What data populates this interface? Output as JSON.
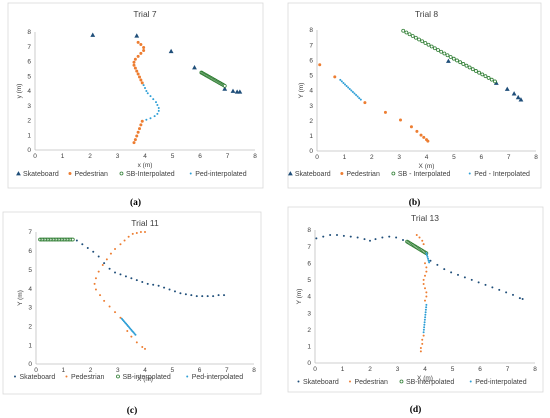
{
  "colors": {
    "skateboard": "#1f4e79",
    "pedestrian": "#ed7d31",
    "sb_interp": "#2e7d32",
    "ped_interp": "#2e9fd6"
  },
  "chart_data": [
    {
      "type": "scatter",
      "caption": "(a)",
      "title": "Trial 7",
      "xlabel": "x (m)",
      "ylabel": "y (m)",
      "xlim": [
        0,
        8
      ],
      "ylim": [
        0,
        8
      ],
      "xticks": [
        0,
        1,
        2,
        3,
        4,
        5,
        6,
        7,
        8
      ],
      "yticks": [
        0,
        1,
        2,
        3,
        4,
        5,
        6,
        7,
        8
      ],
      "legend": [
        "Skateboard",
        "Pedestrian",
        "SB-Interpolated",
        "Ped-interpolated"
      ],
      "series": [
        {
          "name": "Skateboard",
          "marker": "triangle",
          "color": "skateboard",
          "x": [
            2.1,
            3.7,
            4.95,
            5.8,
            6.9,
            7.2,
            7.35,
            7.45
          ],
          "y": [
            7.8,
            7.75,
            6.7,
            5.6,
            4.15,
            4.0,
            3.95,
            3.95
          ]
        },
        {
          "name": "Pedestrian",
          "marker": "circle",
          "color": "pedestrian",
          "points": [
            [
              3.75,
              7.3
            ],
            [
              3.85,
              7.15
            ],
            [
              3.95,
              6.95
            ],
            [
              3.95,
              6.75
            ],
            [
              3.85,
              6.55
            ],
            [
              3.75,
              6.35
            ],
            [
              3.65,
              6.15
            ],
            [
              3.6,
              5.95
            ],
            [
              3.6,
              5.75
            ],
            [
              3.65,
              5.55
            ],
            [
              3.7,
              5.35
            ],
            [
              3.75,
              5.15
            ],
            [
              3.8,
              4.95
            ],
            [
              3.85,
              4.75
            ],
            [
              3.9,
              4.55
            ],
            [
              3.9,
              1.95
            ],
            [
              3.85,
              1.7
            ],
            [
              3.8,
              1.45
            ],
            [
              3.75,
              1.2
            ],
            [
              3.7,
              0.95
            ],
            [
              3.65,
              0.7
            ],
            [
              3.6,
              0.5
            ]
          ]
        },
        {
          "name": "SB-Interpolated",
          "marker": "hollow",
          "color": "sb_interp",
          "from": [
            6.05,
            5.25
          ],
          "to": [
            6.9,
            4.35
          ],
          "count": 24
        },
        {
          "name": "Ped-interpolated",
          "marker": "dot",
          "color": "ped_interp",
          "points": [
            [
              3.95,
              4.4
            ],
            [
              4.0,
              4.2
            ],
            [
              4.05,
              4.0
            ],
            [
              4.1,
              3.85
            ],
            [
              4.2,
              3.65
            ],
            [
              4.3,
              3.45
            ],
            [
              4.4,
              3.25
            ],
            [
              4.45,
              3.05
            ],
            [
              4.5,
              2.85
            ],
            [
              4.5,
              2.65
            ],
            [
              4.45,
              2.45
            ],
            [
              4.35,
              2.3
            ],
            [
              4.2,
              2.15
            ],
            [
              4.05,
              2.05
            ]
          ]
        }
      ]
    },
    {
      "type": "scatter",
      "caption": "(b)",
      "title": "Trial 8",
      "xlabel": "X (m)",
      "ylabel": "Y (m)",
      "xlim": [
        0,
        8
      ],
      "ylim": [
        0,
        8
      ],
      "xticks": [
        0,
        1,
        2,
        3,
        4,
        5,
        6,
        7,
        8
      ],
      "yticks": [
        0,
        1,
        2,
        3,
        4,
        5,
        6,
        7,
        8
      ],
      "legend": [
        "Skateboard",
        "Pedestrian",
        "SB - Interpolated",
        "Ped - Interpolated"
      ],
      "series": [
        {
          "name": "Skateboard",
          "marker": "triangle",
          "color": "skateboard",
          "x": [
            4.8,
            6.55,
            6.95,
            7.2,
            7.35,
            7.45
          ],
          "y": [
            5.95,
            4.5,
            4.1,
            3.8,
            3.55,
            3.4
          ]
        },
        {
          "name": "Pedestrian",
          "marker": "circle",
          "color": "pedestrian",
          "x": [
            0.1,
            0.65,
            1.75,
            2.5,
            3.05,
            3.45,
            3.65,
            3.8,
            3.9,
            4.0,
            4.05
          ],
          "y": [
            5.7,
            4.9,
            3.2,
            2.55,
            2.05,
            1.6,
            1.3,
            1.05,
            0.9,
            0.75,
            0.65
          ]
        },
        {
          "name": "SB - Interpolated",
          "marker": "hollow",
          "color": "sb_interp",
          "from": [
            3.15,
            7.95
          ],
          "to": [
            6.5,
            4.6
          ],
          "count": 30
        },
        {
          "name": "Ped - Interpolated",
          "marker": "dot",
          "color": "ped_interp",
          "from": [
            0.85,
            4.7
          ],
          "to": [
            1.6,
            3.4
          ],
          "count": 14
        }
      ]
    },
    {
      "type": "scatter",
      "caption": "(c)",
      "title": "Trial 11",
      "xlabel": "X (m)",
      "ylabel": "Y (m)",
      "xlim": [
        0,
        8
      ],
      "ylim": [
        0,
        7
      ],
      "xticks": [
        0,
        1,
        2,
        3,
        4,
        5,
        6,
        7,
        8
      ],
      "yticks": [
        0,
        1,
        2,
        3,
        4,
        5,
        6,
        7
      ],
      "legend": [
        "Skateboard",
        "Pedestrian",
        "SB-interpolated",
        "Ped-interpolated"
      ],
      "series": [
        {
          "name": "Skateboard",
          "marker": "dot",
          "color": "skateboard",
          "points": [
            [
              1.5,
              6.55
            ],
            [
              1.7,
              6.35
            ],
            [
              1.9,
              6.15
            ],
            [
              2.1,
              5.95
            ],
            [
              2.3,
              5.7
            ],
            [
              2.5,
              5.35
            ],
            [
              2.7,
              5.05
            ],
            [
              2.9,
              4.85
            ],
            [
              3.1,
              4.75
            ],
            [
              3.3,
              4.65
            ],
            [
              3.5,
              4.55
            ],
            [
              3.7,
              4.45
            ],
            [
              3.9,
              4.35
            ],
            [
              4.1,
              4.25
            ],
            [
              4.3,
              4.2
            ],
            [
              4.5,
              4.15
            ],
            [
              4.7,
              4.05
            ],
            [
              4.9,
              3.95
            ],
            [
              5.1,
              3.85
            ],
            [
              5.3,
              3.75
            ],
            [
              5.5,
              3.7
            ],
            [
              5.7,
              3.65
            ],
            [
              5.9,
              3.6
            ],
            [
              6.1,
              3.6
            ],
            [
              6.3,
              3.6
            ],
            [
              6.5,
              3.6
            ],
            [
              6.7,
              3.65
            ],
            [
              6.9,
              3.65
            ]
          ]
        },
        {
          "name": "Pedestrian",
          "marker": "dot",
          "color": "pedestrian",
          "points": [
            [
              4.0,
              7.0
            ],
            [
              3.85,
              7.0
            ],
            [
              3.7,
              6.95
            ],
            [
              3.55,
              6.9
            ],
            [
              3.4,
              6.75
            ],
            [
              3.25,
              6.55
            ],
            [
              3.1,
              6.35
            ],
            [
              2.9,
              6.1
            ],
            [
              2.75,
              5.85
            ],
            [
              2.6,
              5.55
            ],
            [
              2.45,
              5.25
            ],
            [
              2.3,
              4.9
            ],
            [
              2.2,
              4.55
            ],
            [
              2.15,
              4.25
            ],
            [
              2.2,
              3.95
            ],
            [
              2.35,
              3.65
            ],
            [
              2.5,
              3.35
            ],
            [
              2.7,
              3.05
            ],
            [
              2.9,
              2.75
            ],
            [
              3.1,
              2.45
            ],
            [
              3.35,
              1.75
            ],
            [
              3.5,
              1.45
            ],
            [
              3.7,
              1.15
            ],
            [
              3.9,
              0.9
            ],
            [
              4.0,
              0.8
            ]
          ]
        },
        {
          "name": "SB-interpolated",
          "marker": "hollow",
          "color": "sb_interp",
          "from": [
            0.15,
            6.6
          ],
          "to": [
            1.35,
            6.6
          ],
          "count": 22
        },
        {
          "name": "Ped-interpolated",
          "marker": "dot",
          "color": "ped_interp",
          "from": [
            3.15,
            2.4
          ],
          "to": [
            3.65,
            1.55
          ],
          "count": 14
        }
      ]
    },
    {
      "type": "scatter",
      "caption": "(d)",
      "title": "Trial 13",
      "xlabel": "X (m)",
      "ylabel": "Y (m)",
      "xlim": [
        0,
        8
      ],
      "ylim": [
        0,
        8
      ],
      "xticks": [
        0,
        1,
        2,
        3,
        4,
        5,
        6,
        7,
        8
      ],
      "yticks": [
        0,
        1,
        2,
        3,
        4,
        5,
        6,
        7,
        8
      ],
      "legend": [
        "Skateboard",
        "Pedestrian",
        "SB-interpolated",
        "Ped-interpolated"
      ],
      "series": [
        {
          "name": "Skateboard",
          "marker": "dot",
          "color": "skateboard",
          "points": [
            [
              0.05,
              7.5
            ],
            [
              0.3,
              7.6
            ],
            [
              0.55,
              7.7
            ],
            [
              0.8,
              7.7
            ],
            [
              1.05,
              7.65
            ],
            [
              1.3,
              7.6
            ],
            [
              1.55,
              7.55
            ],
            [
              1.8,
              7.45
            ],
            [
              2.0,
              7.35
            ],
            [
              2.2,
              7.45
            ],
            [
              2.45,
              7.55
            ],
            [
              2.7,
              7.6
            ],
            [
              2.95,
              7.55
            ],
            [
              3.2,
              7.4
            ],
            [
              4.2,
              6.15
            ],
            [
              4.45,
              5.9
            ],
            [
              4.7,
              5.65
            ],
            [
              4.95,
              5.45
            ],
            [
              5.2,
              5.3
            ],
            [
              5.45,
              5.15
            ],
            [
              5.7,
              5.0
            ],
            [
              5.95,
              4.85
            ],
            [
              6.2,
              4.7
            ],
            [
              6.45,
              4.55
            ],
            [
              6.7,
              4.4
            ],
            [
              6.95,
              4.25
            ],
            [
              7.2,
              4.1
            ],
            [
              7.45,
              3.9
            ],
            [
              7.55,
              3.85
            ]
          ]
        },
        {
          "name": "Pedestrian",
          "marker": "dot",
          "color": "pedestrian",
          "points": [
            [
              3.7,
              7.7
            ],
            [
              3.8,
              7.55
            ],
            [
              3.9,
              7.35
            ],
            [
              3.95,
              7.15
            ],
            [
              4.0,
              6.0
            ],
            [
              4.05,
              5.75
            ],
            [
              4.05,
              5.5
            ],
            [
              4.0,
              5.25
            ],
            [
              3.95,
              5.0
            ],
            [
              3.95,
              4.75
            ],
            [
              4.0,
              4.5
            ],
            [
              4.05,
              4.25
            ],
            [
              4.05,
              4.0
            ],
            [
              4.0,
              3.75
            ],
            [
              3.95,
              1.65
            ],
            [
              3.9,
              1.4
            ],
            [
              3.9,
              1.15
            ],
            [
              3.85,
              0.9
            ],
            [
              3.85,
              0.7
            ]
          ]
        },
        {
          "name": "SB-interpolated",
          "marker": "hollow",
          "color": "sb_interp",
          "from": [
            3.35,
            7.3
          ],
          "to": [
            4.05,
            6.6
          ],
          "count": 18
        },
        {
          "name": "Ped-interpolated",
          "marker": "dot",
          "color": "ped_interp",
          "segments": [
            {
              "from": [
                4.05,
                6.6
              ],
              "to": [
                4.15,
                6.05
              ],
              "count": 6
            },
            {
              "from": [
                4.05,
                3.5
              ],
              "to": [
                3.95,
                1.85
              ],
              "count": 12
            }
          ]
        }
      ]
    }
  ]
}
